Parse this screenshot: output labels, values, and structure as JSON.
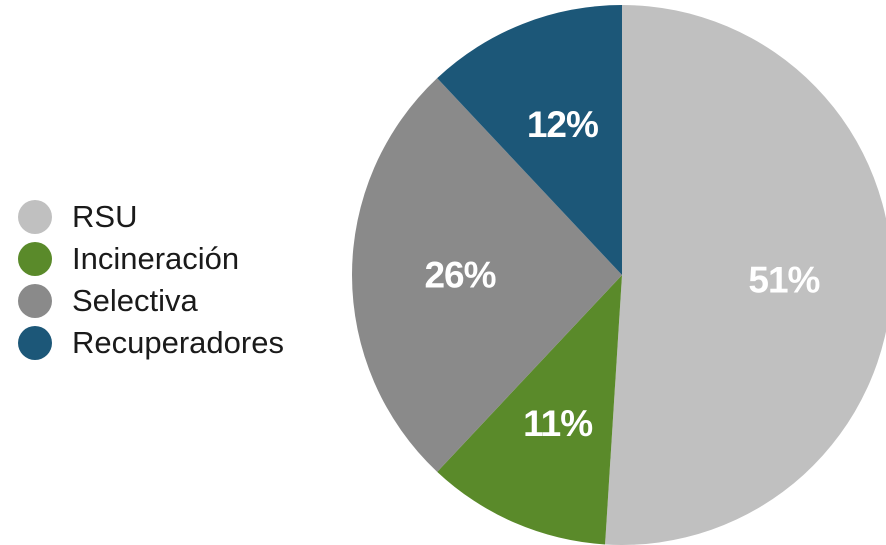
{
  "chart_data": {
    "type": "pie",
    "title": "",
    "start_angle_deg": 0,
    "direction": "clockwise",
    "legend_position": "left",
    "slices": [
      {
        "label": "RSU",
        "value": 51,
        "value_label": "51%",
        "color": "#c0c0c0"
      },
      {
        "label": "Incineración",
        "value": 11,
        "value_label": "11%",
        "color": "#5a8a2a"
      },
      {
        "label": "Selectiva",
        "value": 26,
        "value_label": "26%",
        "color": "#8a8a8a"
      },
      {
        "label": "Recuperadores",
        "value": 12,
        "value_label": "12%",
        "color": "#1c5778"
      }
    ]
  }
}
